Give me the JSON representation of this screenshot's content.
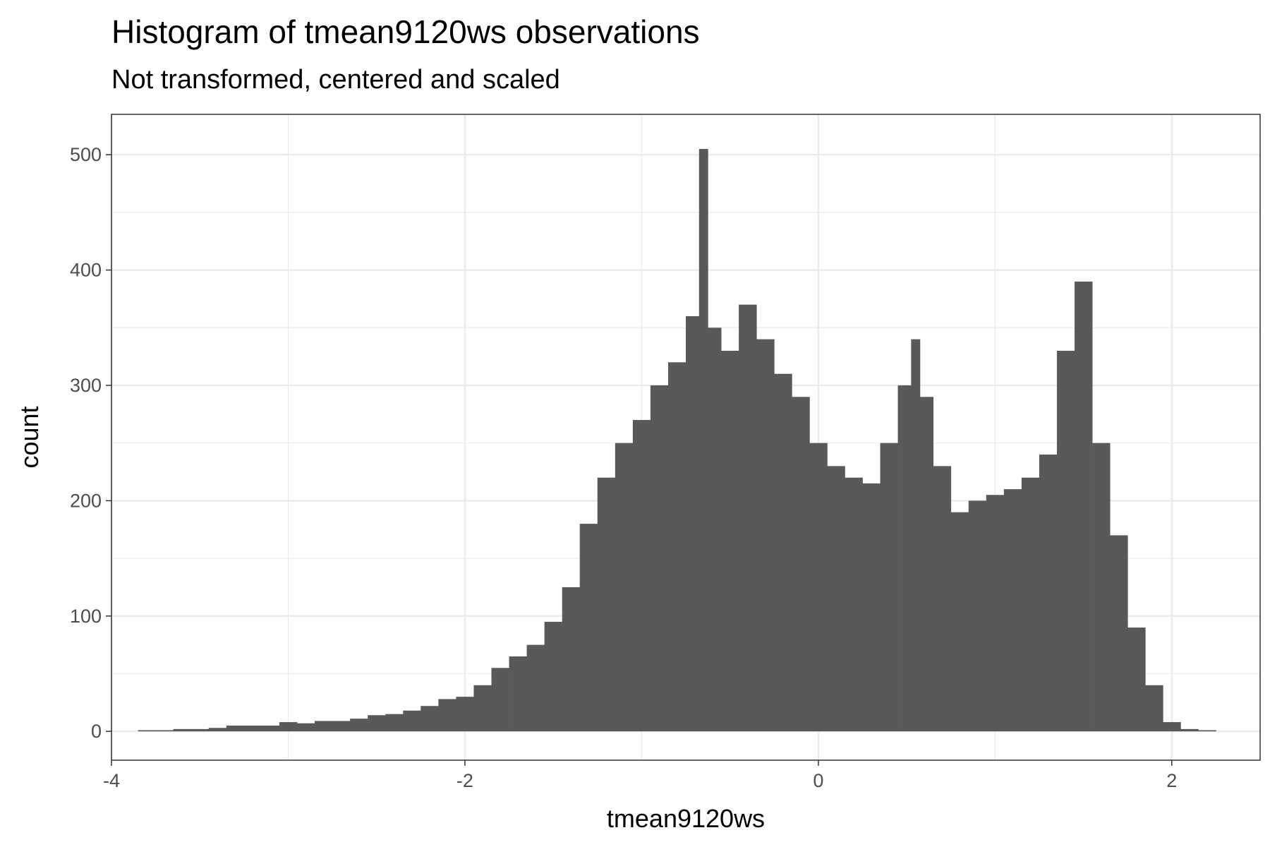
{
  "chart_data": {
    "type": "bar",
    "title": "Histogram of tmean9120ws observations",
    "subtitle": "Not transformed, centered and scaled",
    "xlabel": "tmean9120ws",
    "ylabel": "count",
    "xlim": [
      -4.0,
      2.5
    ],
    "ylim": [
      -25,
      535
    ],
    "x_ticks": [
      -4,
      -2,
      0,
      2
    ],
    "x_tick_labels": [
      "-4",
      "-2",
      "0",
      "2"
    ],
    "y_ticks": [
      0,
      100,
      200,
      300,
      400,
      500
    ],
    "y_tick_labels": [
      "0",
      "100",
      "200",
      "300",
      "400",
      "500"
    ],
    "grid": true,
    "bar_color": "#595959",
    "bins": [
      {
        "x": -3.8,
        "count": 1
      },
      {
        "x": -3.7,
        "count": 1
      },
      {
        "x": -3.6,
        "count": 2
      },
      {
        "x": -3.5,
        "count": 2
      },
      {
        "x": -3.4,
        "count": 3
      },
      {
        "x": -3.3,
        "count": 5
      },
      {
        "x": -3.2,
        "count": 5
      },
      {
        "x": -3.1,
        "count": 5
      },
      {
        "x": -3.0,
        "count": 8
      },
      {
        "x": -2.9,
        "count": 7
      },
      {
        "x": -2.8,
        "count": 9
      },
      {
        "x": -2.7,
        "count": 9
      },
      {
        "x": -2.6,
        "count": 11
      },
      {
        "x": -2.5,
        "count": 14
      },
      {
        "x": -2.4,
        "count": 15
      },
      {
        "x": -2.3,
        "count": 18
      },
      {
        "x": -2.2,
        "count": 22
      },
      {
        "x": -2.1,
        "count": 28
      },
      {
        "x": -2.0,
        "count": 30
      },
      {
        "x": -1.9,
        "count": 40
      },
      {
        "x": -1.8,
        "count": 55
      },
      {
        "x": -1.7,
        "count": 65
      },
      {
        "x": -1.6,
        "count": 75
      },
      {
        "x": -1.5,
        "count": 95
      },
      {
        "x": -1.4,
        "count": 125
      },
      {
        "x": -1.3,
        "count": 180
      },
      {
        "x": -1.2,
        "count": 220
      },
      {
        "x": -1.1,
        "count": 250
      },
      {
        "x": -1.0,
        "count": 270
      },
      {
        "x": -0.9,
        "count": 300
      },
      {
        "x": -0.8,
        "count": 320
      },
      {
        "x": -0.7,
        "count": 360
      },
      {
        "x": -0.65,
        "count": 505
      },
      {
        "x": -0.6,
        "count": 350
      },
      {
        "x": -0.5,
        "count": 330
      },
      {
        "x": -0.4,
        "count": 370
      },
      {
        "x": -0.3,
        "count": 340
      },
      {
        "x": -0.2,
        "count": 310
      },
      {
        "x": -0.1,
        "count": 290
      },
      {
        "x": 0.0,
        "count": 250
      },
      {
        "x": 0.1,
        "count": 230
      },
      {
        "x": 0.2,
        "count": 220
      },
      {
        "x": 0.3,
        "count": 215
      },
      {
        "x": 0.4,
        "count": 250
      },
      {
        "x": 0.5,
        "count": 300
      },
      {
        "x": 0.55,
        "count": 340
      },
      {
        "x": 0.6,
        "count": 290
      },
      {
        "x": 0.7,
        "count": 230
      },
      {
        "x": 0.8,
        "count": 190
      },
      {
        "x": 0.9,
        "count": 200
      },
      {
        "x": 1.0,
        "count": 205
      },
      {
        "x": 1.1,
        "count": 210
      },
      {
        "x": 1.2,
        "count": 220
      },
      {
        "x": 1.3,
        "count": 240
      },
      {
        "x": 1.4,
        "count": 330
      },
      {
        "x": 1.5,
        "count": 390
      },
      {
        "x": 1.6,
        "count": 250
      },
      {
        "x": 1.7,
        "count": 170
      },
      {
        "x": 1.8,
        "count": 90
      },
      {
        "x": 1.9,
        "count": 40
      },
      {
        "x": 2.0,
        "count": 8
      },
      {
        "x": 2.1,
        "count": 2
      },
      {
        "x": 2.2,
        "count": 1
      }
    ]
  }
}
